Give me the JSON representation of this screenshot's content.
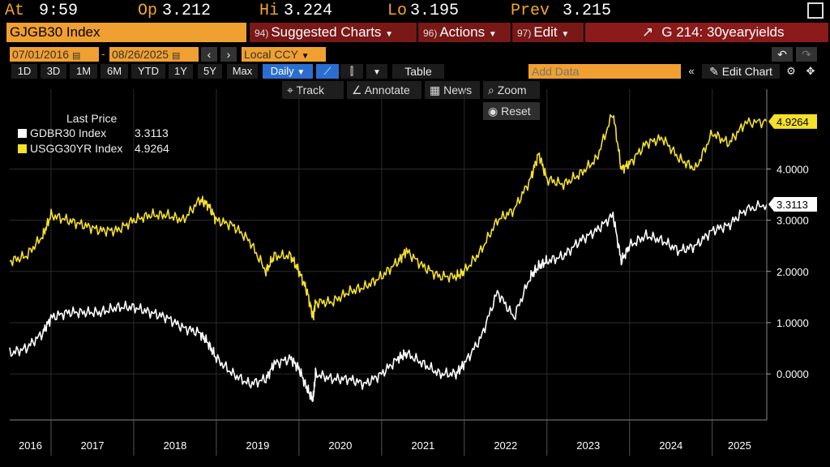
{
  "quote": {
    "at_label": "At",
    "at_value": "9:59",
    "op_label": "Op",
    "op_value": "3.212",
    "hi_label": "Hi",
    "hi_value": "3.224",
    "lo_label": "Lo",
    "lo_value": "3.195",
    "prev_label": "Prev",
    "prev_value": "3.215"
  },
  "command": {
    "security": "GJGB30 Index",
    "suggested": {
      "num": "94)",
      "label": "Suggested Charts"
    },
    "actions": {
      "num": "96)",
      "label": "Actions"
    },
    "edit": {
      "num": "97)",
      "label": "Edit"
    },
    "chart_name": "G 214: 30yearyields"
  },
  "dates": {
    "start": "07/01/2016",
    "end": "08/26/2025",
    "currency": "Local CCY"
  },
  "ranges": [
    "1D",
    "3D",
    "1M",
    "6M",
    "YTD",
    "1Y",
    "5Y",
    "Max"
  ],
  "frequency": "Daily",
  "table_label": "Table",
  "add_data_placeholder": "Add Data",
  "edit_chart_label": "Edit Chart",
  "tools": {
    "track": "Track",
    "annotate": "Annotate",
    "news": "News",
    "zoom": "Zoom",
    "reset": "Reset"
  },
  "legend": {
    "title": "Last Price",
    "rows": [
      {
        "name": "GDBR30 Index",
        "value": "3.3113",
        "color": "#ffffff"
      },
      {
        "name": "USGG30YR Index",
        "value": "4.9264",
        "color": "#f5e02a"
      }
    ]
  },
  "chart_data": {
    "type": "line",
    "x_unit": "year",
    "x_categories": [
      "2016",
      "2017",
      "2018",
      "2019",
      "2020",
      "2021",
      "2022",
      "2023",
      "2024",
      "2025"
    ],
    "xlim": [
      2016.5,
      2025.66
    ],
    "ylim": [
      -0.9,
      5.4
    ],
    "y_ticks": [
      "0.0000",
      "1.0000",
      "2.0000",
      "3.0000",
      "4.0000"
    ],
    "y_tick_values": [
      0,
      1,
      2,
      3,
      4
    ],
    "last_labels": [
      "4.9264",
      "3.3113"
    ],
    "series": [
      {
        "name": "USGG30YR Index",
        "color": "#f5e02a",
        "x": [
          2016.5,
          2016.7,
          2016.9,
          2017.0,
          2017.2,
          2017.4,
          2017.6,
          2017.8,
          2018.0,
          2018.2,
          2018.4,
          2018.6,
          2018.8,
          2018.9,
          2019.0,
          2019.2,
          2019.4,
          2019.6,
          2019.7,
          2019.9,
          2020.0,
          2020.1,
          2020.17,
          2020.2,
          2020.4,
          2020.6,
          2020.8,
          2021.0,
          2021.2,
          2021.3,
          2021.5,
          2021.7,
          2021.9,
          2022.0,
          2022.2,
          2022.4,
          2022.6,
          2022.8,
          2022.9,
          2023.0,
          2023.2,
          2023.4,
          2023.6,
          2023.8,
          2023.9,
          2024.0,
          2024.2,
          2024.4,
          2024.6,
          2024.8,
          2025.0,
          2025.2,
          2025.4,
          2025.66
        ],
        "y": [
          2.2,
          2.3,
          2.7,
          3.1,
          3.0,
          2.9,
          2.8,
          2.8,
          3.0,
          3.1,
          3.1,
          3.0,
          3.4,
          3.3,
          3.0,
          2.9,
          2.6,
          2.0,
          2.3,
          2.3,
          2.0,
          1.6,
          1.1,
          1.4,
          1.4,
          1.6,
          1.7,
          1.9,
          2.2,
          2.4,
          2.1,
          1.9,
          1.9,
          2.0,
          2.4,
          3.0,
          3.2,
          3.8,
          4.3,
          3.8,
          3.7,
          3.9,
          4.2,
          5.1,
          4.0,
          4.1,
          4.5,
          4.6,
          4.2,
          4.0,
          4.7,
          4.5,
          4.9,
          4.9264
        ]
      },
      {
        "name": "GDBR30 Index",
        "color": "#ffffff",
        "x": [
          2016.5,
          2016.7,
          2016.9,
          2017.0,
          2017.2,
          2017.4,
          2017.6,
          2017.8,
          2018.0,
          2018.2,
          2018.4,
          2018.6,
          2018.8,
          2018.9,
          2019.0,
          2019.2,
          2019.4,
          2019.6,
          2019.7,
          2019.9,
          2020.0,
          2020.1,
          2020.17,
          2020.2,
          2020.4,
          2020.6,
          2020.8,
          2021.0,
          2021.2,
          2021.3,
          2021.5,
          2021.7,
          2021.9,
          2022.0,
          2022.2,
          2022.4,
          2022.6,
          2022.8,
          2022.9,
          2023.0,
          2023.2,
          2023.4,
          2023.6,
          2023.8,
          2023.9,
          2024.0,
          2024.2,
          2024.4,
          2024.6,
          2024.8,
          2025.0,
          2025.2,
          2025.4,
          2025.66
        ],
        "y": [
          0.4,
          0.5,
          0.8,
          1.1,
          1.2,
          1.2,
          1.2,
          1.3,
          1.3,
          1.2,
          1.1,
          0.9,
          0.8,
          0.6,
          0.3,
          0.0,
          -0.2,
          -0.1,
          0.2,
          0.3,
          0.1,
          -0.3,
          -0.5,
          0.0,
          -0.1,
          -0.1,
          -0.2,
          0.0,
          0.3,
          0.4,
          0.2,
          0.0,
          0.0,
          0.2,
          0.7,
          1.6,
          1.1,
          1.9,
          2.1,
          2.2,
          2.3,
          2.6,
          2.8,
          3.1,
          2.2,
          2.5,
          2.7,
          2.6,
          2.4,
          2.5,
          2.8,
          2.9,
          3.2,
          3.3113
        ]
      }
    ]
  }
}
